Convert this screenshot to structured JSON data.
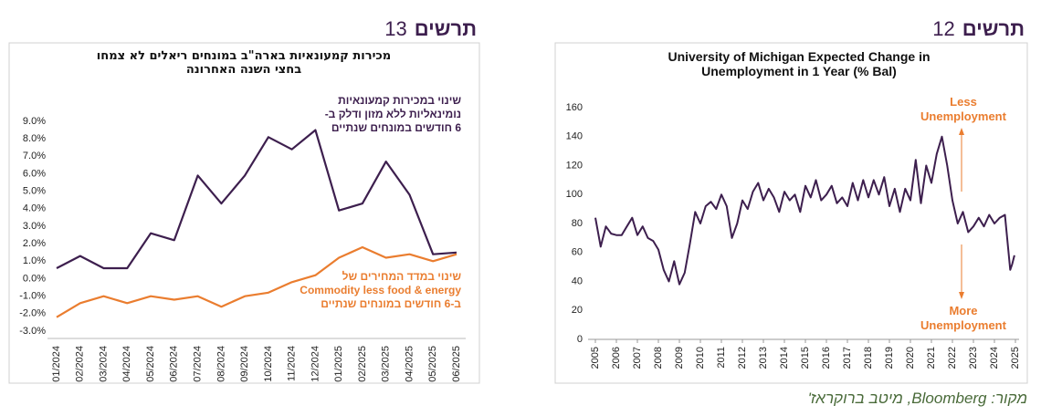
{
  "chart_data": [
    {
      "type": "line",
      "heading_word": "תרשים",
      "heading_number": 13,
      "title": "מכירות קמעונאיות בארה\"ב במונחים ריאלים לא צמחו\nבחצי השנה האחרונה",
      "categories": [
        "01/2024",
        "02/2024",
        "03/2024",
        "04/2024",
        "05/2024",
        "06/2024",
        "07/2024",
        "08/2024",
        "09/2024",
        "10/2024",
        "11/2024",
        "12/2024",
        "01/2025",
        "02/2025",
        "03/2025",
        "04/2025",
        "05/2025",
        "06/2025"
      ],
      "series": [
        {
          "name": "שינוי במכירות קמעונאיות\nנומינאליות ללא מזון ודלק ב-\n6 חודשים במונחים שנתיים",
          "color": "#3d1f4e",
          "values": [
            0.6,
            1.3,
            0.6,
            0.6,
            2.6,
            2.2,
            5.9,
            4.3,
            5.9,
            8.1,
            7.4,
            8.5,
            3.9,
            4.3,
            6.7,
            4.8,
            1.4,
            1.5
          ]
        },
        {
          "name": "שינוי במדד המחירים של\nCommodity less food & energy\nב-6 חודשים במונחים שנתיים",
          "color": "#ea7d2f",
          "values": [
            -2.2,
            -1.4,
            -1.0,
            -1.4,
            -1.0,
            -1.2,
            -1.0,
            -1.6,
            -1.0,
            -0.8,
            -0.2,
            0.2,
            1.2,
            1.8,
            1.2,
            1.4,
            1.0,
            1.4
          ]
        }
      ],
      "ylim": [
        -3,
        9
      ],
      "yticks": [
        {
          "value": -3,
          "label": "-3.0%"
        },
        {
          "value": -2,
          "label": "-2.0%"
        },
        {
          "value": -1,
          "label": "-1.0%"
        },
        {
          "value": 0,
          "label": "0.0%"
        },
        {
          "value": 1,
          "label": "1.0%"
        },
        {
          "value": 2,
          "label": "2.0%"
        },
        {
          "value": 3,
          "label": "3.0%"
        },
        {
          "value": 4,
          "label": "4.0%"
        },
        {
          "value": 5,
          "label": "5.0%"
        },
        {
          "value": 6,
          "label": "6.0%"
        },
        {
          "value": 7,
          "label": "7.0%"
        },
        {
          "value": 8,
          "label": "8.0%"
        },
        {
          "value": 9,
          "label": "9.0%"
        }
      ],
      "grid": false
    },
    {
      "type": "line",
      "heading_word": "תרשים",
      "heading_number": 12,
      "title": "University of Michigan Expected Change in\nUnemployment in 1 Year (% Bal)",
      "x": [
        2005,
        2005.25,
        2005.5,
        2005.75,
        2006,
        2006.25,
        2006.5,
        2006.75,
        2007,
        2007.25,
        2007.5,
        2007.75,
        2008,
        2008.25,
        2008.5,
        2008.75,
        2009,
        2009.25,
        2009.5,
        2009.75,
        2010,
        2010.25,
        2010.5,
        2010.75,
        2011,
        2011.25,
        2011.5,
        2011.75,
        2012,
        2012.25,
        2012.5,
        2012.75,
        2013,
        2013.25,
        2013.5,
        2013.75,
        2014,
        2014.25,
        2014.5,
        2014.75,
        2015,
        2015.25,
        2015.5,
        2015.75,
        2016,
        2016.25,
        2016.5,
        2016.75,
        2017,
        2017.25,
        2017.5,
        2017.75,
        2018,
        2018.25,
        2018.5,
        2018.75,
        2019,
        2019.25,
        2019.5,
        2019.75,
        2020,
        2020.25,
        2020.5,
        2020.75,
        2021,
        2021.25,
        2021.5,
        2021.75,
        2022,
        2022.25,
        2022.5,
        2022.75,
        2023,
        2023.25,
        2023.5,
        2023.75,
        2024,
        2024.25,
        2024.5,
        2024.75,
        2024.85,
        2024.95
      ],
      "series": [
        {
          "name": "University of Michigan Expected Change in Unemployment in 1 Year (% Bal)",
          "color": "#3d1f4e",
          "values": [
            84,
            64,
            78,
            73,
            72,
            72,
            78,
            84,
            72,
            78,
            70,
            68,
            62,
            48,
            40,
            54,
            38,
            46,
            66,
            88,
            80,
            92,
            95,
            90,
            100,
            92,
            70,
            80,
            96,
            90,
            102,
            108,
            96,
            104,
            98,
            88,
            102,
            96,
            100,
            88,
            106,
            98,
            110,
            96,
            100,
            106,
            94,
            98,
            92,
            108,
            96,
            110,
            98,
            110,
            100,
            112,
            92,
            104,
            88,
            104,
            96,
            124,
            94,
            120,
            108,
            128,
            140,
            120,
            96,
            80,
            88,
            74,
            78,
            84,
            78,
            86,
            80,
            84,
            86,
            48,
            52,
            58
          ]
        }
      ],
      "xlim": [
        2005,
        2025
      ],
      "xticks": [
        2005,
        2006,
        2007,
        2008,
        2009,
        2010,
        2011,
        2012,
        2013,
        2014,
        2015,
        2016,
        2017,
        2018,
        2019,
        2020,
        2021,
        2022,
        2023,
        2024,
        2025
      ],
      "ylim": [
        0,
        160
      ],
      "yticks": [
        0,
        20,
        40,
        60,
        80,
        100,
        120,
        140,
        160
      ],
      "annotations": [
        "Less\nUnemployment",
        "More\nUnemployment"
      ],
      "annotation_color": "#ea7d2f",
      "grid": false
    }
  ],
  "source": "מקור: Bloomberg, מיטב ברוקראז'"
}
